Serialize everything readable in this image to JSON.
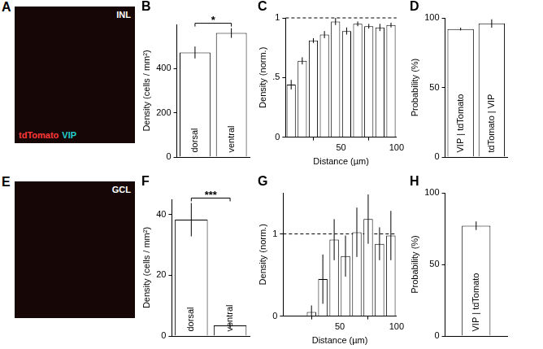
{
  "chart_data": [
    {
      "type": "bar",
      "title": "B",
      "categories": [
        "dorsal",
        "ventral"
      ],
      "values": [
        473,
        561
      ],
      "errors": [
        27,
        22
      ],
      "color": "#ffffff",
      "y_label": "Density (cells / mm²)",
      "ylim": [
        0,
        600
      ],
      "yticks": [
        0,
        200,
        400
      ],
      "annotation": "*",
      "grid": false,
      "tick_labels": "y"
    },
    {
      "type": "bar",
      "title": "C",
      "x": [
        5,
        15,
        25,
        35,
        45,
        55,
        65,
        75,
        85,
        95
      ],
      "values": [
        0.44,
        0.64,
        0.81,
        0.86,
        0.97,
        0.89,
        0.95,
        0.93,
        0.92,
        0.94
      ],
      "errors": [
        0.04,
        0.03,
        0.02,
        0.03,
        0.03,
        0.03,
        0.02,
        0.02,
        0.03,
        0.02
      ],
      "color": "#ffffff",
      "x_label": "Distance (µm)",
      "y_label": "Density (norm.)",
      "xlim": [
        0,
        100
      ],
      "xticks": [
        50,
        100
      ],
      "ylim": [
        0,
        1
      ],
      "yticks": [
        0,
        {
          "value": 0.5,
          "label": ".5"
        },
        1
      ],
      "reference": {
        "value": 1,
        "line_style": "dashed"
      },
      "grid": false
    },
    {
      "type": "bar",
      "title": "D",
      "categories": [
        "VIP | tdTomato",
        "tdTomato | VIP"
      ],
      "values": [
        92,
        96
      ],
      "errors": [
        1,
        3
      ],
      "color": "#ffffff",
      "y_label": "Probability (%)",
      "ylim": [
        0,
        100
      ],
      "yticks": [
        0,
        50,
        100
      ],
      "grid": false,
      "tick_labels": "y"
    },
    {
      "type": "bar",
      "title": "F",
      "categories": [
        "dorsal",
        "ventral"
      ],
      "values": [
        38.3,
        3.5
      ],
      "errors": [
        5.5,
        1
      ],
      "color": "#ffffff",
      "y_label": "Density (cells / mm²)",
      "ylim": [
        0,
        45
      ],
      "yticks": [
        0,
        20,
        40
      ],
      "annotation": "***",
      "grid": false,
      "tick_labels": "y"
    },
    {
      "type": "bar",
      "title": "G",
      "x": [
        5,
        15,
        25,
        35,
        45,
        55,
        65,
        75,
        85,
        95
      ],
      "values": [
        0,
        0,
        0.05,
        0.45,
        0.93,
        0.73,
        1.02,
        1.18,
        0.88,
        0.98
      ],
      "errors": [
        0,
        0,
        0.08,
        0.3,
        0.25,
        0.25,
        0.3,
        0.3,
        0.2,
        0.3
      ],
      "color": "#ffffff",
      "x_label": "Distance (µm)",
      "y_label": "Density (norm.)",
      "xlim": [
        0,
        100
      ],
      "xticks": [
        50,
        100
      ],
      "ylim": [
        0,
        1.5
      ],
      "yticks": [
        0,
        1
      ],
      "reference": {
        "value": 1,
        "line_style": "dashed"
      },
      "grid": false
    },
    {
      "type": "bar",
      "title": "H",
      "categories": [
        "VIP | tdTomato"
      ],
      "values": [
        77
      ],
      "errors": [
        3
      ],
      "color": "#ffffff",
      "y_label": "Probability (%)",
      "ylim": [
        0,
        100
      ],
      "yticks": [
        0,
        50,
        100
      ],
      "grid": false,
      "tick_labels": "y"
    }
  ],
  "images": [
    {
      "title": "A",
      "label": "INL",
      "channels": [
        {
          "name": "tdTomato",
          "color": "#ff3a3a"
        },
        {
          "name": "VIP",
          "color": "#22d0d0"
        }
      ]
    },
    {
      "title": "E",
      "label": "GCL",
      "channels": []
    }
  ]
}
